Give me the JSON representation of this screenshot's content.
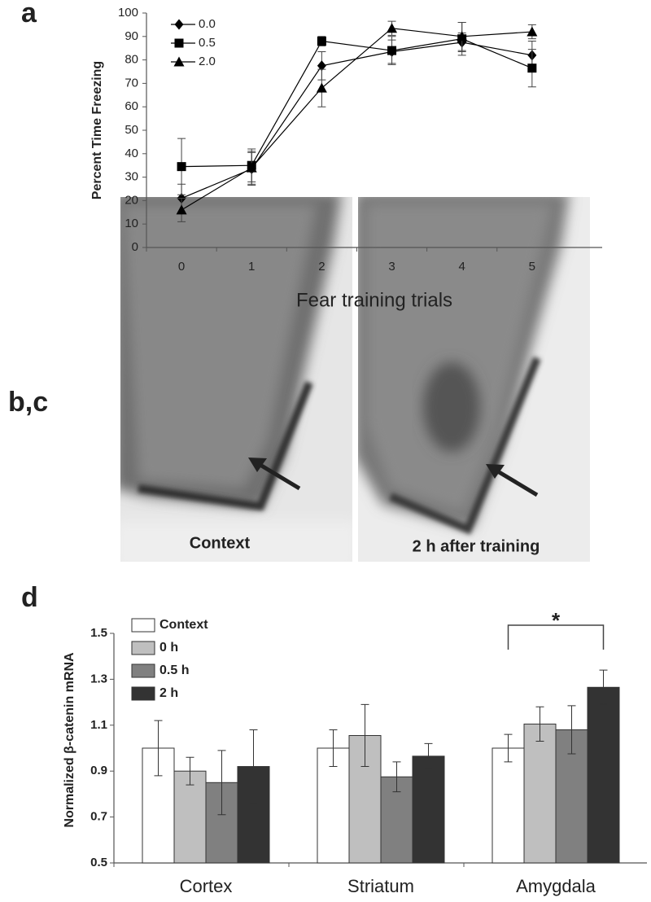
{
  "panel_labels": [
    "a",
    "b,c",
    "d"
  ],
  "images": {
    "labels": [
      "Context",
      "2 h after training"
    ]
  },
  "chart_data": [
    {
      "type": "line",
      "ylabel": "Percent Time Freezing",
      "xlabel": "Fear training trials",
      "x": [
        0,
        1,
        2,
        3,
        4,
        5
      ],
      "xlim": [
        -0.5,
        6
      ],
      "xticks": [
        0,
        1,
        2,
        3,
        4,
        5
      ],
      "ylim": [
        0,
        100
      ],
      "yticks": [
        0,
        10,
        20,
        30,
        40,
        50,
        60,
        70,
        80,
        90,
        100
      ],
      "legend": "upper left",
      "series": [
        {
          "name": "0.0",
          "color": "#000000",
          "marker": "diamond",
          "values": [
            21,
            33.5,
            77.5,
            83.5,
            87.5,
            82
          ],
          "errors": [
            6,
            7,
            6,
            5,
            4,
            6
          ]
        },
        {
          "name": "0.5",
          "color": "#000000",
          "marker": "square",
          "values": [
            34.5,
            35,
            88,
            84,
            89,
            76.5
          ],
          "errors": [
            12,
            7,
            2,
            6,
            7,
            8
          ]
        },
        {
          "name": "2.0",
          "color": "#000000",
          "marker": "triangle",
          "values": [
            16,
            34,
            68,
            93.5,
            90,
            92
          ],
          "errors": [
            5,
            7,
            8,
            3,
            6,
            3
          ]
        }
      ]
    },
    {
      "type": "bar",
      "ylabel": "Normalized β-catenin mRNA",
      "categories": [
        "Cortex",
        "Striatum",
        "Amygdala"
      ],
      "ylim": [
        0.5,
        1.5
      ],
      "yticks": [
        0.5,
        0.7,
        0.9,
        1.1,
        1.3,
        1.5
      ],
      "legend": "upper left",
      "annotation": "*",
      "series": [
        {
          "name": "Context",
          "color": "#ffffff",
          "values": [
            1.0,
            1.0,
            1.0
          ],
          "errors": [
            0.12,
            0.08,
            0.06
          ]
        },
        {
          "name": "0 h",
          "color": "#bfbfbf",
          "values": [
            0.9,
            1.055,
            1.105
          ],
          "errors": [
            0.06,
            0.135,
            0.075
          ]
        },
        {
          "name": "0.5 h",
          "color": "#808080",
          "values": [
            0.85,
            0.875,
            1.08
          ],
          "errors": [
            0.14,
            0.065,
            0.105
          ]
        },
        {
          "name": "2 h",
          "color": "#333333",
          "values": [
            0.92,
            0.965,
            1.265
          ],
          "errors": [
            0.16,
            0.055,
            0.075
          ]
        }
      ]
    }
  ]
}
